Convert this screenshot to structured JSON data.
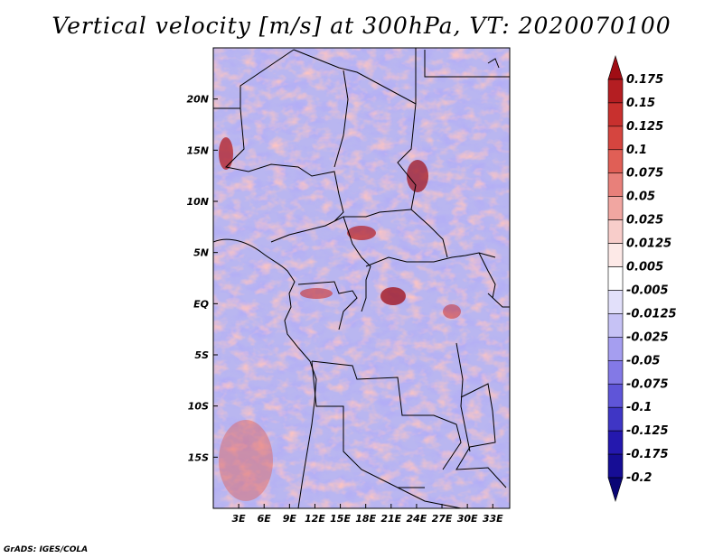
{
  "title": "Vertical velocity [m/s] at 300hPa, VT: 2020070100",
  "credit": "GrADS: IGES/COLA",
  "map": {
    "lon_range": [
      0,
      35
    ],
    "lat_range": [
      -20,
      25
    ],
    "lat_ticks": [
      {
        "label": "20N",
        "lat": 20
      },
      {
        "label": "15N",
        "lat": 15
      },
      {
        "label": "10N",
        "lat": 10
      },
      {
        "label": "5N",
        "lat": 5
      },
      {
        "label": "EQ",
        "lat": 0
      },
      {
        "label": "5S",
        "lat": -5
      },
      {
        "label": "10S",
        "lat": -10
      },
      {
        "label": "15S",
        "lat": -15
      }
    ],
    "lon_ticks": [
      {
        "label": "3E",
        "lon": 3
      },
      {
        "label": "6E",
        "lon": 6
      },
      {
        "label": "9E",
        "lon": 9
      },
      {
        "label": "12E",
        "lon": 12
      },
      {
        "label": "15E",
        "lon": 15
      },
      {
        "label": "18E",
        "lon": 18
      },
      {
        "label": "21E",
        "lon": 21
      },
      {
        "label": "24E",
        "lon": 24
      },
      {
        "label": "27E",
        "lon": 27
      },
      {
        "label": "30E",
        "lon": 30
      },
      {
        "label": "33E",
        "lon": 33
      }
    ]
  },
  "colorbar": {
    "levels": [
      "0.175",
      "0.15",
      "0.125",
      "0.1",
      "0.075",
      "0.05",
      "0.025",
      "0.0125",
      "0.005",
      "-0.005",
      "-0.0125",
      "-0.025",
      "-0.05",
      "-0.075",
      "-0.1",
      "-0.125",
      "-0.175",
      "-0.2"
    ],
    "colors": [
      "#a00d14",
      "#b41e22",
      "#c8302e",
      "#d5453f",
      "#e05f56",
      "#e8807a",
      "#f1a6a1",
      "#f8cdca",
      "#fde9e7",
      "#ffffff",
      "#e2e0fa",
      "#c6c2f5",
      "#a59ef0",
      "#8379e6",
      "#5f55d8",
      "#3f36c5",
      "#2418ae",
      "#160d95",
      "#0a0575"
    ]
  }
}
